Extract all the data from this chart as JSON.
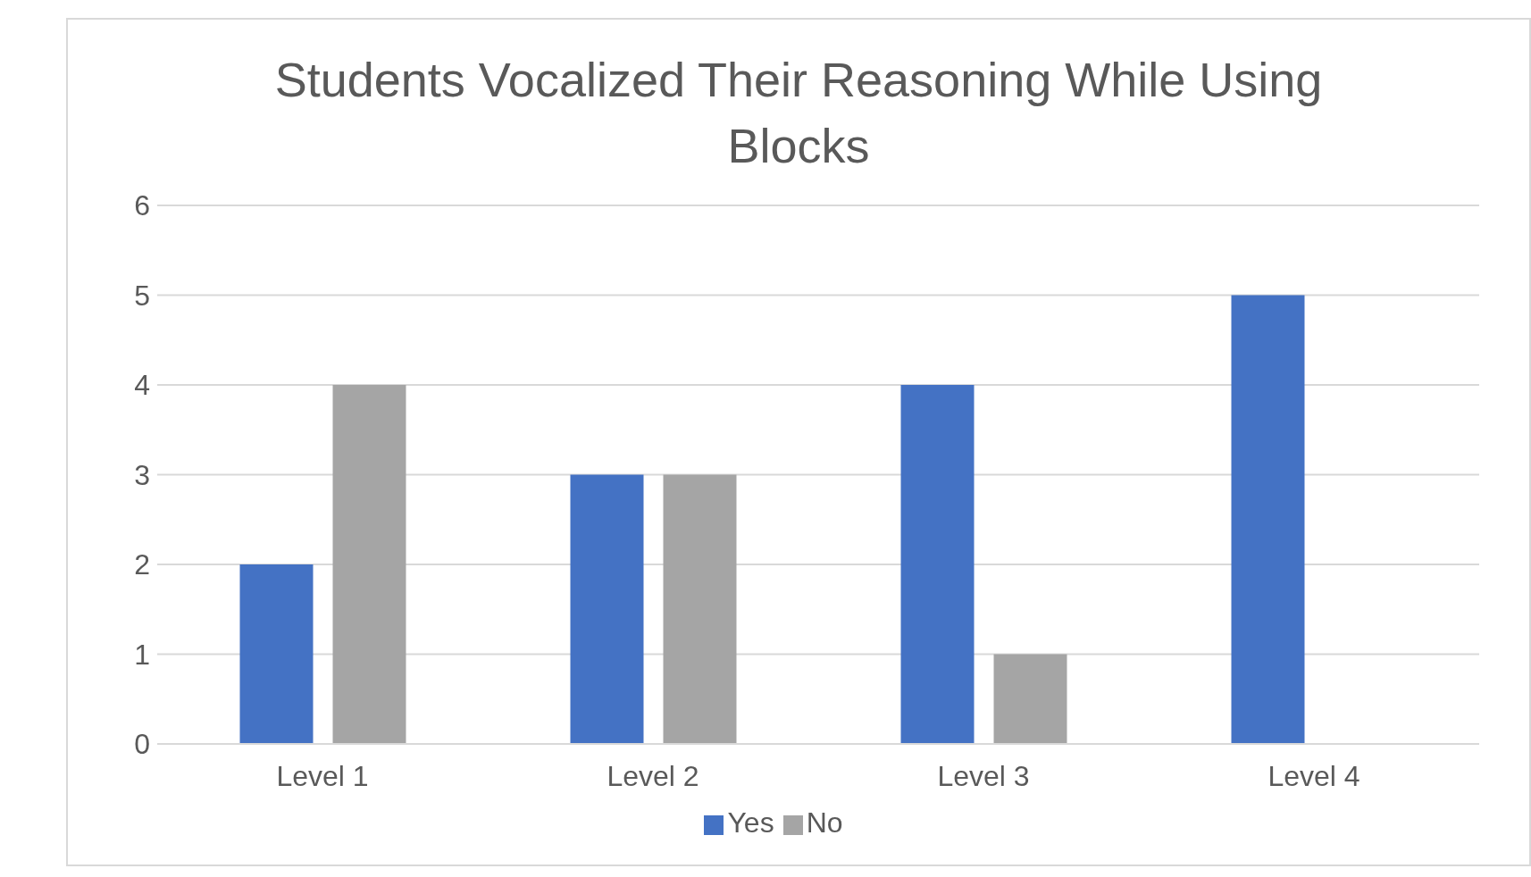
{
  "chart_data": {
    "type": "bar",
    "title": "Students Vocalized Their Reasoning While Using Blocks",
    "categories": [
      "Level 1",
      "Level 2",
      "Level 3",
      "Level 4"
    ],
    "series": [
      {
        "name": "Yes",
        "color": "#4472c4",
        "values": [
          2,
          3,
          4,
          5
        ]
      },
      {
        "name": "No",
        "color": "#a5a5a5",
        "values": [
          4,
          3,
          1,
          0
        ]
      }
    ],
    "ylim": [
      0,
      6
    ],
    "yticks": [
      0,
      1,
      2,
      3,
      4,
      5,
      6
    ],
    "grid": "y",
    "legend": "bottom"
  }
}
